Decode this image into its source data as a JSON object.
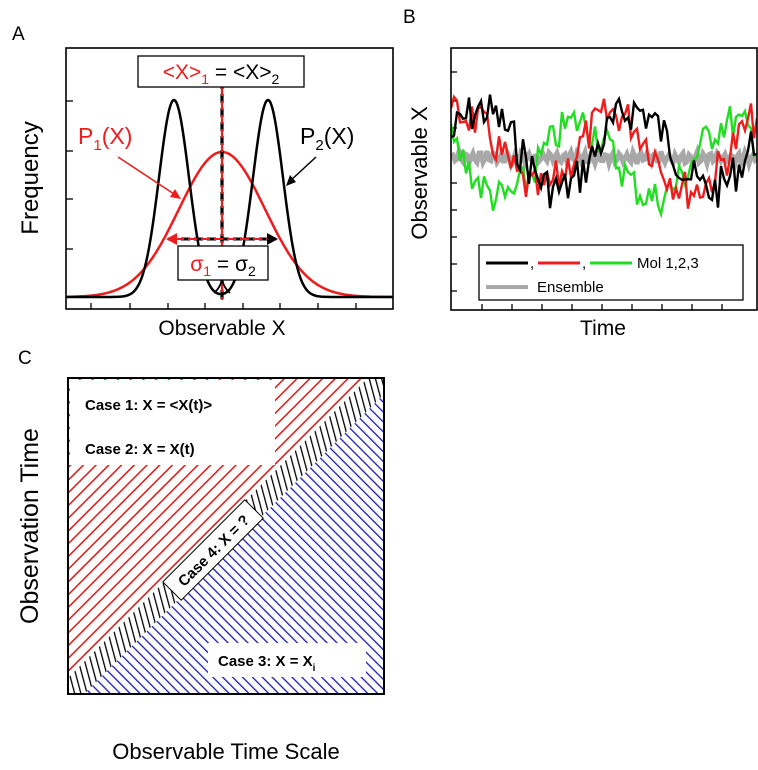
{
  "panelA": {
    "letter": "A",
    "ylabel": "Frequency",
    "xlabel": "Observable X",
    "mean_left": "<X>",
    "mean_left_sub": "1",
    "mean_eq": " = <X>",
    "mean_right_sub": "2",
    "p1": "P",
    "p1_sub": "1",
    "p1_arg": "(X)",
    "p2": "P",
    "p2_sub": "2",
    "p2_arg": "(X)",
    "sigma1": "σ",
    "sigma1_sub": "1",
    "sigma_eq": " = σ",
    "sigma2_sub": "2",
    "colors": {
      "p1": "#ee1c1c",
      "p2": "#000000"
    }
  },
  "panelB": {
    "letter": "B",
    "ylabel": "Observable X",
    "xlabel": "Time",
    "legend_mol": "Mol 1,2,3",
    "legend_sep": ",",
    "legend_ensemble": "Ensemble",
    "colors": {
      "mol1": "#000000",
      "mol2": "#ee1c1c",
      "mol3": "#22dd22",
      "ensemble": "#a8a8a8"
    }
  },
  "panelC": {
    "letter": "C",
    "ylabel": "Observation Time",
    "xlabel": "Observable Time Scale",
    "case1": "Case 1: X = <X(t)>",
    "case2": "Case 2: X = X(t)",
    "case3": "Case 3: X = X",
    "case3_sub": "i",
    "case4": "Case 4: X = ?",
    "colors": {
      "red_hatch": "#e21818",
      "blue_hatch": "#1a1ab8",
      "black_hatch": "#000000"
    }
  }
}
